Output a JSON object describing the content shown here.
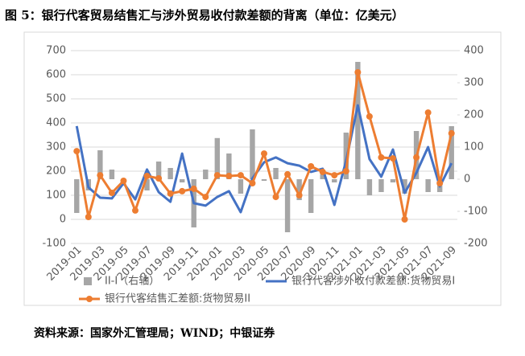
{
  "chart_data": {
    "type": "bar-line",
    "title": "图 5：银行代客贸易结售汇与涉外贸易收付款差额的背离（单位：亿美元）",
    "source": "资料来源：国家外汇管理局；WIND；中银证券",
    "categories": [
      "2019-01",
      null,
      "2019-03",
      null,
      "2019-05",
      null,
      "2019-07",
      null,
      "2019-09",
      null,
      "2019-11",
      null,
      "2020-01",
      null,
      "2020-03",
      null,
      "2020-05",
      null,
      "2020-07",
      null,
      "2020-09",
      null,
      "2020-11",
      null,
      "2021-01",
      null,
      "2021-03",
      null,
      "2021-05",
      null,
      "2021-07",
      null,
      "2021-09"
    ],
    "ylim": [
      -100,
      700
    ],
    "yticks": [
      -100,
      0,
      100,
      200,
      300,
      400,
      500,
      600,
      700
    ],
    "y2lim": [
      -200,
      400
    ],
    "y2ticks": [
      -200,
      -100,
      0,
      100,
      200,
      300,
      400
    ],
    "grid": true,
    "series": [
      {
        "name": "II-I（右轴）",
        "type": "bar",
        "axis": "y2",
        "color": "#a6a6a6",
        "values": [
          -105,
          -35,
          90,
          30,
          -10,
          0,
          -35,
          55,
          35,
          -10,
          -150,
          30,
          128,
          80,
          -45,
          155,
          -5,
          35,
          -165,
          -65,
          -105,
          15,
          -10,
          145,
          365,
          -50,
          -40,
          -10,
          -45,
          150,
          -40,
          -40,
          165
        ]
      },
      {
        "name": "银行代客涉外收付款差额:货物贸易I",
        "type": "line",
        "color": "#4472c4",
        "values": [
          387,
          133,
          90,
          87,
          150,
          83,
          207,
          113,
          73,
          273,
          67,
          57,
          93,
          117,
          30,
          170,
          237,
          257,
          233,
          223,
          197,
          210,
          60,
          243,
          473,
          250,
          177,
          290,
          110,
          193,
          300,
          137,
          233
        ]
      },
      {
        "name": "银行代客结售汇差额:货物贸易II",
        "type": "line",
        "color": "#ed7d31",
        "marker": true,
        "values": [
          283,
          10,
          183,
          110,
          160,
          37,
          180,
          170,
          107,
          117,
          127,
          93,
          183,
          180,
          183,
          150,
          273,
          93,
          187,
          100,
          220,
          197,
          183,
          200,
          610,
          427,
          257,
          253,
          0,
          257,
          443,
          150,
          357
        ]
      }
    ]
  }
}
